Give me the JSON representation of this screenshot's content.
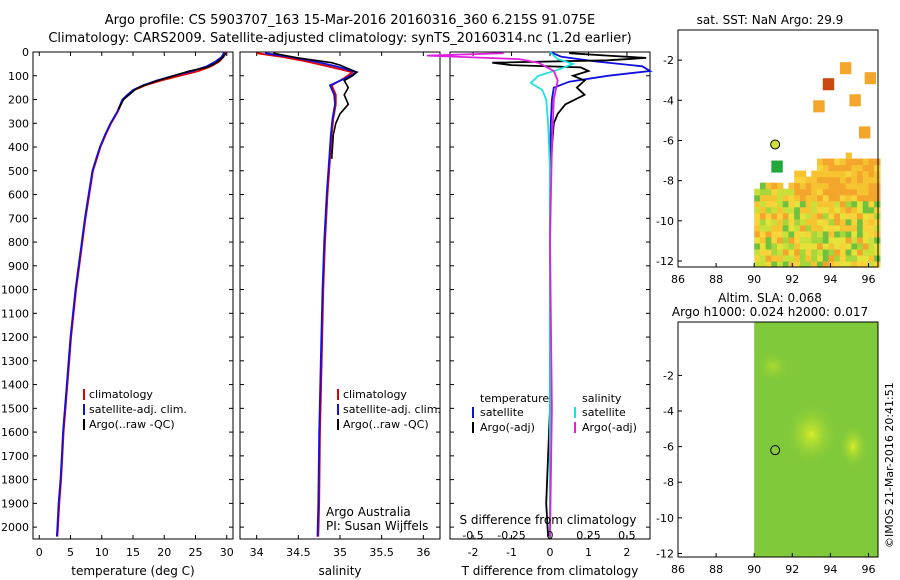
{
  "header": {
    "title_line1": "Argo profile: CS 5903707_163 15-Mar-2016 20160316_360 6.215S 91.075E",
    "title_line2": "Climatology: CARS2009. Satellite-adjusted climatology: synTS_20160314.nc (1.2d earlier)"
  },
  "colors": {
    "climatology": "#e00000",
    "satellite": "#1010e0",
    "argo": "#000000",
    "sat_salinity": "#20e0e0",
    "argo_salinity": "#e020e0"
  },
  "chart_data": [
    {
      "id": "temperature",
      "type": "line",
      "xlabel": "temperature (deg C)",
      "ylabel": "",
      "xlim": [
        -1,
        31
      ],
      "ylim": [
        2050,
        0
      ],
      "xticks": [
        0,
        5,
        10,
        15,
        20,
        25,
        30
      ],
      "yticks": [
        0,
        100,
        200,
        300,
        400,
        500,
        600,
        700,
        800,
        900,
        1000,
        1100,
        1200,
        1300,
        1400,
        1500,
        1600,
        1700,
        1800,
        1900,
        2000
      ],
      "legend": {
        "placement": "lower-center",
        "entries": [
          "climatology",
          "satellite-adj. clim.",
          "Argo(..raw -QC)"
        ]
      },
      "series": [
        {
          "name": "climatology",
          "color": "#e00000",
          "points": [
            [
              29.8,
              0
            ],
            [
              29.5,
              20
            ],
            [
              28.8,
              40
            ],
            [
              27.5,
              60
            ],
            [
              25.5,
              80
            ],
            [
              22.5,
              100
            ],
            [
              19.5,
              120
            ],
            [
              17.0,
              140
            ],
            [
              15.2,
              160
            ],
            [
              14.2,
              180
            ],
            [
              13.4,
              200
            ],
            [
              12.6,
              250
            ],
            [
              11.5,
              300
            ],
            [
              10.6,
              350
            ],
            [
              9.8,
              400
            ],
            [
              9.2,
              450
            ],
            [
              8.6,
              500
            ],
            [
              8.0,
              600
            ],
            [
              7.4,
              700
            ],
            [
              6.9,
              800
            ],
            [
              6.4,
              900
            ],
            [
              5.9,
              1000
            ],
            [
              5.5,
              1100
            ],
            [
              5.1,
              1200
            ],
            [
              4.8,
              1300
            ],
            [
              4.5,
              1400
            ],
            [
              4.2,
              1500
            ],
            [
              3.9,
              1600
            ],
            [
              3.7,
              1700
            ],
            [
              3.5,
              1800
            ],
            [
              3.2,
              1900
            ],
            [
              3.0,
              2000
            ],
            [
              2.9,
              2040
            ]
          ]
        },
        {
          "name": "satellite-adj. clim.",
          "color": "#1010e0",
          "points": [
            [
              29.6,
              0
            ],
            [
              29.2,
              20
            ],
            [
              28.2,
              40
            ],
            [
              26.8,
              60
            ],
            [
              24.5,
              80
            ],
            [
              21.5,
              100
            ],
            [
              18.8,
              120
            ],
            [
              16.6,
              140
            ],
            [
              15.0,
              160
            ],
            [
              14.1,
              180
            ],
            [
              13.3,
              200
            ],
            [
              12.5,
              250
            ],
            [
              11.4,
              300
            ],
            [
              10.5,
              350
            ],
            [
              9.7,
              400
            ],
            [
              9.1,
              450
            ],
            [
              8.5,
              500
            ],
            [
              7.9,
              600
            ],
            [
              7.3,
              700
            ],
            [
              6.8,
              800
            ],
            [
              6.3,
              900
            ],
            [
              5.8,
              1000
            ],
            [
              5.4,
              1100
            ],
            [
              5.0,
              1200
            ],
            [
              4.7,
              1300
            ],
            [
              4.4,
              1400
            ],
            [
              4.1,
              1500
            ],
            [
              3.8,
              1600
            ],
            [
              3.6,
              1700
            ],
            [
              3.4,
              1800
            ],
            [
              3.1,
              1900
            ],
            [
              2.9,
              2000
            ],
            [
              2.8,
              2040
            ]
          ]
        },
        {
          "name": "Argo(..raw -QC)",
          "color": "#000000",
          "points": [
            [
              29.9,
              5
            ],
            [
              29.6,
              15
            ],
            [
              29.1,
              30
            ],
            [
              28.0,
              50
            ],
            [
              26.8,
              65
            ],
            [
              24.0,
              80
            ],
            [
              21.5,
              100
            ],
            [
              19.0,
              120
            ],
            [
              16.8,
              140
            ],
            [
              15.5,
              155
            ],
            [
              14.6,
              175
            ],
            [
              13.5,
              200
            ],
            [
              12.7,
              240
            ]
          ]
        }
      ]
    },
    {
      "id": "salinity",
      "type": "line",
      "xlabel": "salinity",
      "ylabel": "",
      "xlim": [
        33.8,
        36.2
      ],
      "ylim": [
        2050,
        0
      ],
      "xticks": [
        34,
        34.5,
        35,
        35.5,
        36
      ],
      "legend": {
        "placement": "lower-center",
        "entries": [
          "climatology",
          "satellite-adj. clim.",
          "Argo(..raw -QC)"
        ]
      },
      "annotation": [
        "Argo Australia",
        "PI: Susan Wijffels"
      ],
      "series": [
        {
          "name": "climatology",
          "color": "#e00000",
          "points": [
            [
              34.0,
              5
            ],
            [
              34.3,
              20
            ],
            [
              34.6,
              40
            ],
            [
              34.85,
              60
            ],
            [
              35.15,
              85
            ],
            [
              35.05,
              110
            ],
            [
              34.9,
              140
            ],
            [
              34.95,
              180
            ],
            [
              34.95,
              220
            ],
            [
              34.92,
              280
            ],
            [
              34.9,
              350
            ],
            [
              34.88,
              450
            ],
            [
              34.85,
              600
            ],
            [
              34.82,
              800
            ],
            [
              34.8,
              1000
            ],
            [
              34.78,
              1300
            ],
            [
              34.76,
              1600
            ],
            [
              34.75,
              1900
            ],
            [
              34.74,
              2040
            ]
          ]
        },
        {
          "name": "satellite-adj. clim.",
          "color": "#1010e0",
          "points": [
            [
              34.1,
              5
            ],
            [
              34.4,
              20
            ],
            [
              34.7,
              40
            ],
            [
              34.95,
              60
            ],
            [
              35.2,
              85
            ],
            [
              35.1,
              105
            ],
            [
              34.88,
              140
            ],
            [
              34.93,
              180
            ],
            [
              34.94,
              220
            ],
            [
              34.91,
              280
            ],
            [
              34.89,
              350
            ],
            [
              34.87,
              450
            ],
            [
              34.84,
              600
            ],
            [
              34.81,
              800
            ],
            [
              34.79,
              1000
            ],
            [
              34.77,
              1300
            ],
            [
              34.75,
              1600
            ],
            [
              34.74,
              1900
            ],
            [
              34.73,
              2040
            ]
          ]
        },
        {
          "name": "Argo(..raw -QC)",
          "color": "#000000",
          "points": [
            [
              34.2,
              5
            ],
            [
              34.35,
              15
            ],
            [
              34.5,
              25
            ],
            [
              34.7,
              35
            ],
            [
              34.9,
              45
            ],
            [
              35.0,
              55
            ],
            [
              35.1,
              70
            ],
            [
              35.2,
              85
            ],
            [
              35.15,
              100
            ],
            [
              35.05,
              120
            ],
            [
              35.1,
              150
            ],
            [
              35.05,
              180
            ],
            [
              35.1,
              220
            ],
            [
              35.0,
              260
            ],
            [
              34.95,
              300
            ],
            [
              34.92,
              350
            ],
            [
              34.9,
              450
            ]
          ]
        }
      ]
    },
    {
      "id": "difference",
      "type": "line",
      "xlabel": "T difference from climatology",
      "top_label": "S difference from climatology",
      "xlim": [
        -2.6,
        2.6
      ],
      "ylim": [
        2050,
        0
      ],
      "xticks": [
        -2,
        -1,
        0,
        1,
        2
      ],
      "top_ticks": [
        "-0.5",
        "-0.25",
        "0",
        "0.25",
        "0.5"
      ],
      "legend": {
        "placement": "lower-center",
        "temperature_header": "temperature",
        "salinity_header": "salinity",
        "entries": [
          "satellite",
          "Argo(-adj)",
          "satellite",
          "Argo(-adj)"
        ]
      },
      "series": [
        {
          "name": "temperature satellite",
          "color": "#1010e0",
          "points": [
            [
              0.0,
              0
            ],
            [
              0.3,
              20
            ],
            [
              1.2,
              40
            ],
            [
              2.4,
              60
            ],
            [
              2.6,
              80
            ],
            [
              1.5,
              100
            ],
            [
              0.5,
              125
            ],
            [
              0.1,
              150
            ],
            [
              0.05,
              200
            ],
            [
              0.02,
              300
            ],
            [
              0.0,
              500
            ],
            [
              0.0,
              1000
            ],
            [
              0.0,
              1500
            ],
            [
              0.0,
              2040
            ]
          ]
        },
        {
          "name": "temperature Argo(-adj)",
          "color": "#000000",
          "points": [
            [
              0.5,
              5
            ],
            [
              1.5,
              15
            ],
            [
              2.5,
              25
            ],
            [
              1.5,
              35
            ],
            [
              -1.5,
              45
            ],
            [
              -1.0,
              55
            ],
            [
              0.8,
              65
            ],
            [
              1.0,
              80
            ],
            [
              0.6,
              100
            ],
            [
              0.9,
              120
            ],
            [
              0.7,
              150
            ],
            [
              0.9,
              180
            ],
            [
              0.4,
              220
            ],
            [
              0.2,
              260
            ],
            [
              0.1,
              300
            ],
            [
              0.05,
              400
            ],
            [
              0.0,
              600
            ],
            [
              0.0,
              1000
            ],
            [
              0.0,
              1500
            ],
            [
              -0.1,
              1900
            ],
            [
              -0.05,
              2040
            ]
          ]
        },
        {
          "name": "salinity satellite",
          "color": "#20e0e0",
          "points": [
            [
              0.0,
              0
            ],
            [
              0.2,
              30
            ],
            [
              0.6,
              50
            ],
            [
              0.2,
              75
            ],
            [
              -0.3,
              100
            ],
            [
              -0.5,
              130
            ],
            [
              -0.2,
              160
            ],
            [
              -0.1,
              200
            ],
            [
              -0.05,
              300
            ],
            [
              0.0,
              500
            ],
            [
              0.0,
              1000
            ],
            [
              0.0,
              2040
            ]
          ]
        },
        {
          "name": "salinity Argo(-adj)",
          "color": "#e020e0",
          "points": [
            [
              -1.2,
              5
            ],
            [
              -3.2,
              15
            ],
            [
              -0.8,
              30
            ],
            [
              -0.3,
              45
            ],
            [
              0.1,
              80
            ],
            [
              0.2,
              120
            ],
            [
              0.1,
              200
            ],
            [
              0.05,
              400
            ],
            [
              0.0,
              800
            ],
            [
              0.05,
              1500
            ],
            [
              0.0,
              2040
            ]
          ]
        }
      ]
    },
    {
      "id": "sst-map",
      "type": "heatmap",
      "title": "sat. SST: NaN Argo: 29.9",
      "xlim": [
        86,
        96.5
      ],
      "ylim": [
        -12.3,
        -0.5
      ],
      "xticks": [
        86,
        88,
        90,
        92,
        94,
        96
      ],
      "yticks": [
        -2,
        -4,
        -6,
        -8,
        -10,
        -12
      ],
      "marker": {
        "lon": 91.1,
        "lat": -6.2
      }
    },
    {
      "id": "sla-map",
      "type": "heatmap",
      "title_line1": "Altim. SLA: 0.068",
      "title_line2": "Argo h1000: 0.024 h2000: 0.017",
      "xlim": [
        86,
        96.5
      ],
      "ylim": [
        -12.2,
        1.0
      ],
      "xticks": [
        86,
        88,
        90,
        92,
        94,
        96
      ],
      "yticks": [
        -2,
        -4,
        -6,
        -8,
        -10,
        -12
      ],
      "marker": {
        "lon": 91.1,
        "lat": -6.2
      }
    }
  ],
  "stamp": "©IMOS 21-Mar-2016 20:41:51"
}
